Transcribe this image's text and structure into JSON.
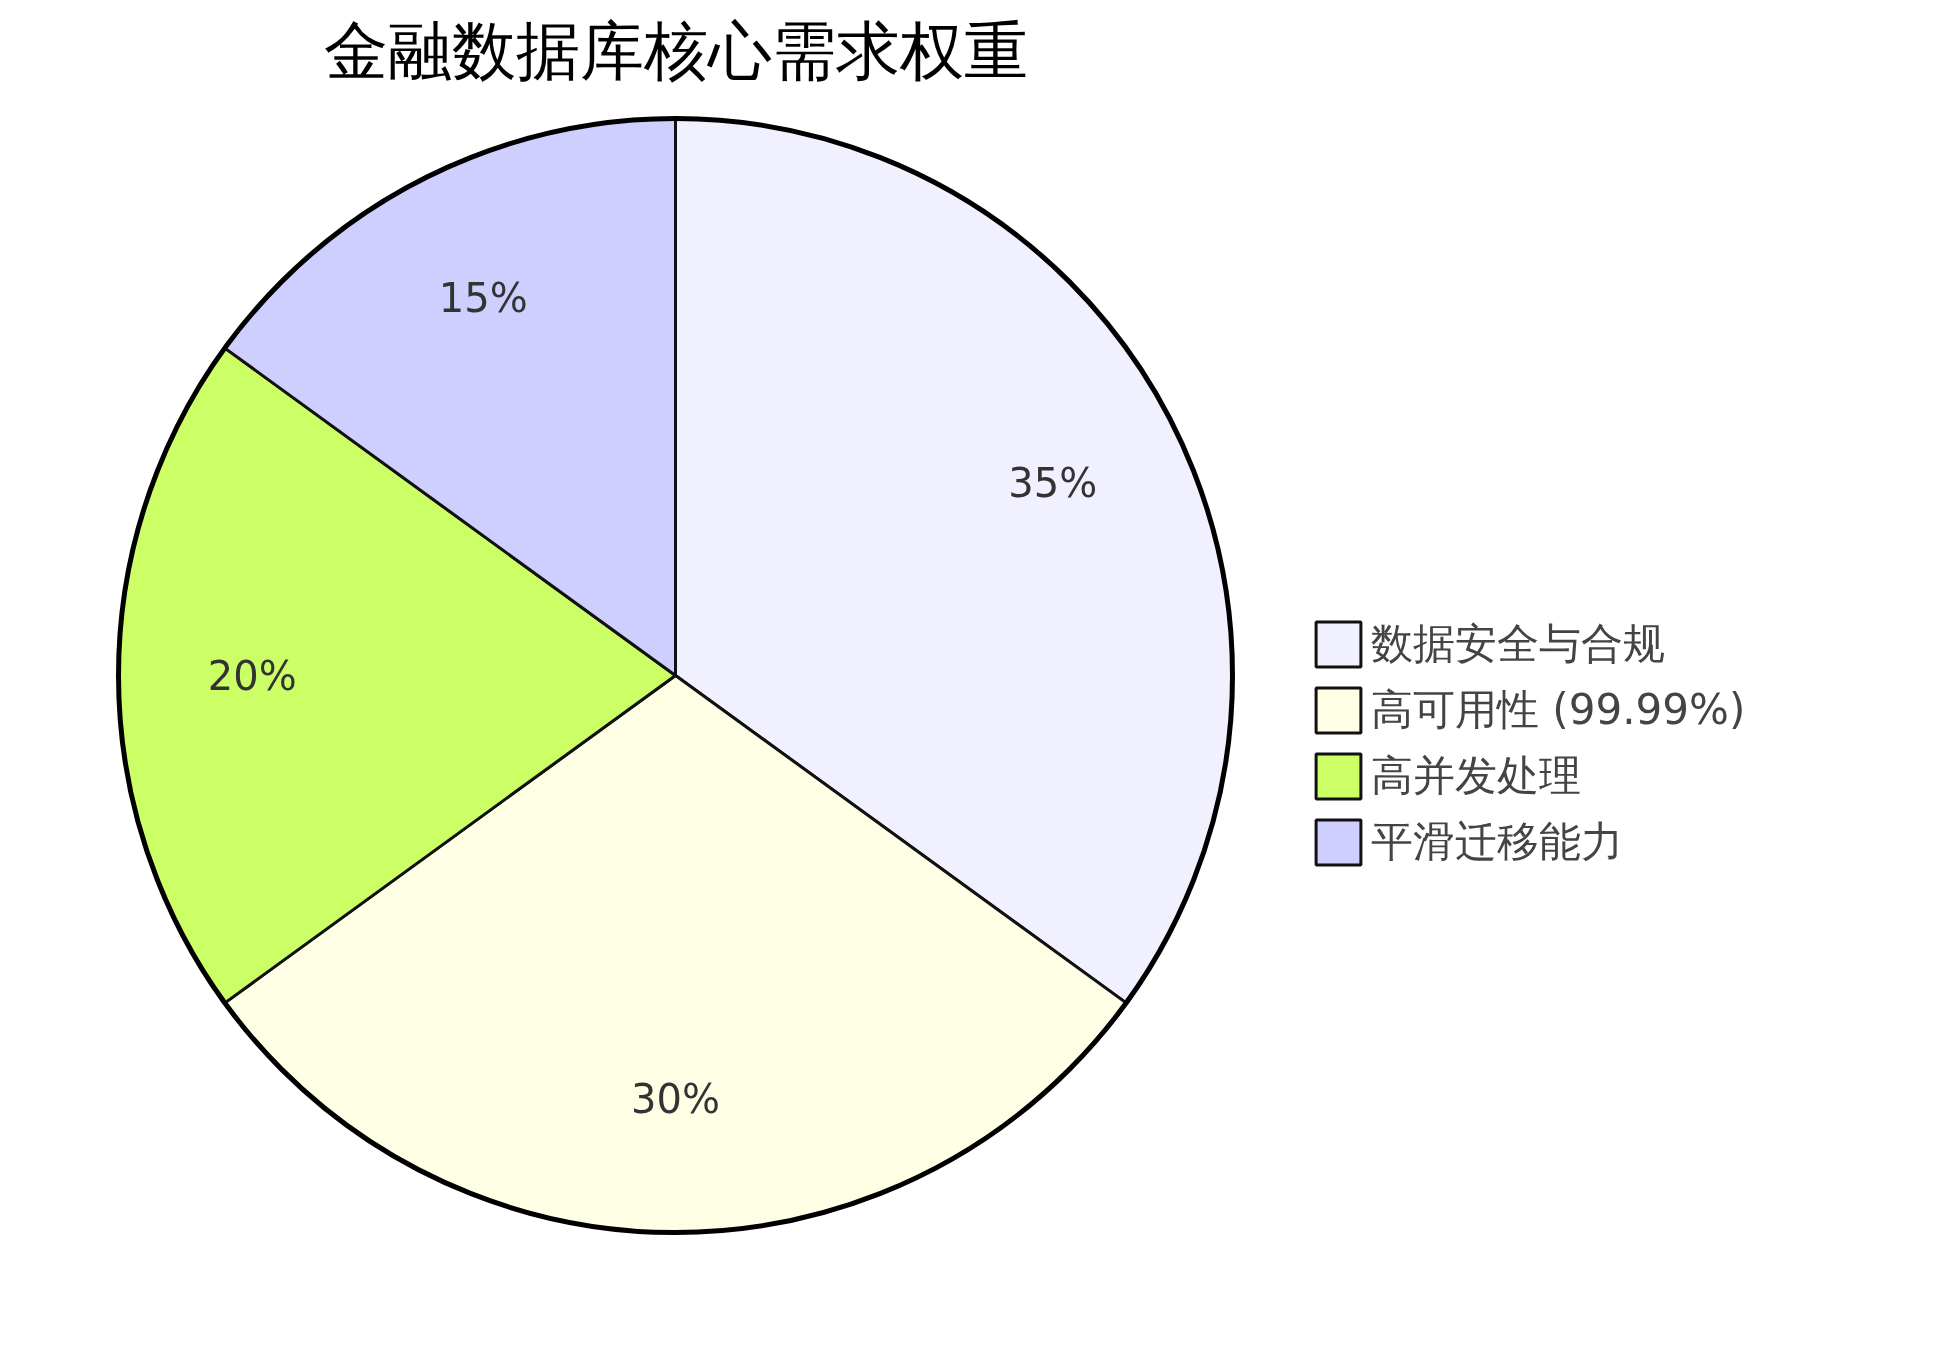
{
  "chart_data": {
    "type": "pie",
    "title": "金融数据库核心需求权重",
    "categories": [
      "数据安全与合规",
      "高可用性 (99.99%)",
      "高并发处理",
      "平滑迁移能力"
    ],
    "values": [
      35,
      30,
      20,
      15
    ],
    "value_labels": [
      "35%",
      "30%",
      "20%",
      "15%"
    ],
    "colors": [
      "#f0f0ff",
      "#ffffe6",
      "#ccff66",
      "#cfcfff"
    ],
    "legend": "right"
  }
}
